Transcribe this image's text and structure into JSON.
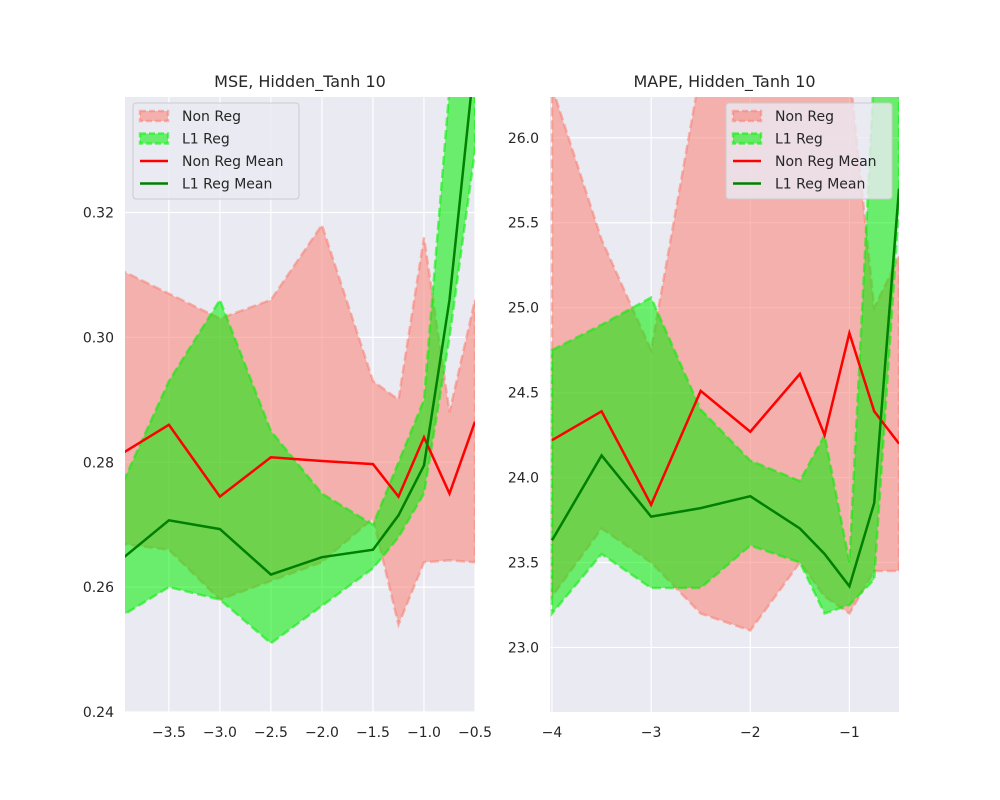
{
  "chart_data": [
    {
      "type": "line",
      "title": "MSE, Hidden_Tanh 10",
      "xlabel": "",
      "ylabel": "",
      "xlim": [
        -3.93,
        -0.5
      ],
      "ylim": [
        0.24,
        0.3385
      ],
      "xticks": [
        -3.5,
        -3.0,
        -2.5,
        -2.0,
        -1.5,
        -1.0,
        -0.5
      ],
      "xtick_labels": [
        "−3.5",
        "−3.0",
        "−2.5",
        "−2.0",
        "−1.5",
        "−1.0",
        "−0.5"
      ],
      "yticks": [
        0.24,
        0.26,
        0.28,
        0.3,
        0.32
      ],
      "ytick_labels": [
        "0.24",
        "0.26",
        "0.28",
        "0.30",
        "0.32"
      ],
      "grid": true,
      "legend_position": "top-left",
      "x": [
        -4.0,
        -3.5,
        -3.0,
        -2.5,
        -2.0,
        -1.5,
        -1.25,
        -1.0,
        -0.75,
        -0.5
      ],
      "bands": [
        {
          "name": "Non Reg",
          "color": "#fa8072",
          "upper": [
            0.311,
            0.307,
            0.303,
            0.306,
            0.318,
            0.293,
            0.29,
            0.316,
            0.288,
            0.306
          ],
          "lower": [
            0.267,
            0.266,
            0.258,
            0.261,
            0.264,
            0.271,
            0.254,
            0.264,
            0.2643,
            0.264
          ]
        },
        {
          "name": "L1 Reg",
          "color": "#00ee00",
          "upper": [
            0.275,
            0.293,
            0.306,
            0.285,
            0.275,
            0.27,
            0.28,
            0.29,
            0.34,
            0.345
          ],
          "lower": [
            0.255,
            0.26,
            0.258,
            0.251,
            0.257,
            0.263,
            0.268,
            0.275,
            0.3,
            0.33
          ]
        }
      ],
      "series": [
        {
          "name": "Non Reg Mean",
          "color": "#ff0000",
          "values": [
            0.281,
            0.286,
            0.2745,
            0.2808,
            0.2802,
            0.2797,
            0.2745,
            0.284,
            0.275,
            0.2865
          ]
        },
        {
          "name": "L1 Reg Mean",
          "color": "#008000",
          "values": [
            0.264,
            0.2707,
            0.2693,
            0.262,
            0.2648,
            0.266,
            0.2715,
            0.2795,
            0.306,
            0.345
          ]
        }
      ]
    },
    {
      "type": "line",
      "title": "MAPE, Hidden_Tanh 10",
      "xlabel": "",
      "ylabel": "",
      "xlim": [
        -4.02,
        -0.5
      ],
      "ylim": [
        22.62,
        26.24
      ],
      "xticks": [
        -4,
        -3,
        -2,
        -1
      ],
      "xtick_labels": [
        "−4",
        "−3",
        "−2",
        "−1"
      ],
      "yticks": [
        23.0,
        23.5,
        24.0,
        24.5,
        25.0,
        25.5,
        26.0
      ],
      "ytick_labels": [
        "23.0",
        "23.5",
        "24.0",
        "24.5",
        "25.0",
        "25.5",
        "26.0"
      ],
      "grid": true,
      "legend_position": "top-right",
      "x": [
        -4.0,
        -3.5,
        -3.0,
        -2.5,
        -2.0,
        -1.5,
        -1.25,
        -1.0,
        -0.75,
        -0.5
      ],
      "bands": [
        {
          "name": "Non Reg",
          "color": "#fa8072",
          "upper": [
            26.3,
            25.4,
            24.75,
            26.4,
            26.4,
            26.4,
            26.3,
            26.4,
            25.0,
            25.3
          ],
          "lower": [
            23.3,
            23.7,
            23.5,
            23.2,
            23.1,
            23.5,
            23.3,
            23.2,
            23.45,
            23.45
          ]
        },
        {
          "name": "L1 Reg",
          "color": "#00ee00",
          "upper": [
            24.75,
            24.9,
            25.06,
            24.4,
            24.1,
            23.98,
            24.25,
            23.5,
            26.4,
            26.4
          ],
          "lower": [
            23.2,
            23.55,
            23.35,
            23.35,
            23.6,
            23.5,
            23.2,
            23.25,
            23.4,
            25.6
          ]
        }
      ],
      "series": [
        {
          "name": "Non Reg Mean",
          "color": "#ff0000",
          "values": [
            24.22,
            24.39,
            23.84,
            24.51,
            24.27,
            24.61,
            24.25,
            24.85,
            24.39,
            24.2
          ]
        },
        {
          "name": "L1 Reg Mean",
          "color": "#008000",
          "values": [
            23.63,
            24.13,
            23.77,
            23.82,
            23.89,
            23.7,
            23.55,
            23.36,
            23.85,
            25.7
          ]
        }
      ]
    }
  ]
}
